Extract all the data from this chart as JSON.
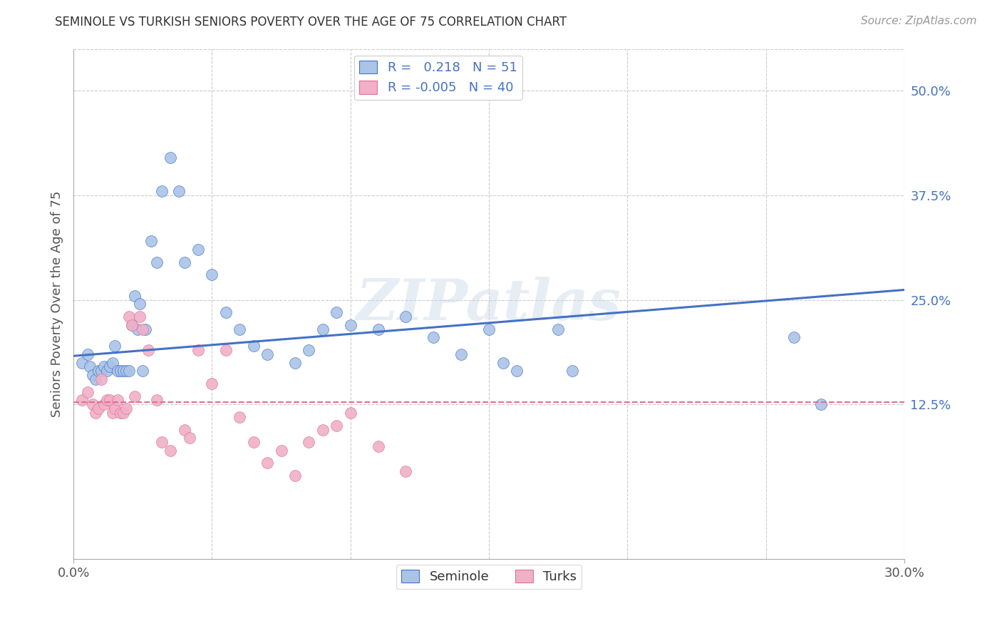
{
  "title": "SEMINOLE VS TURKISH SENIORS POVERTY OVER THE AGE OF 75 CORRELATION CHART",
  "source": "Source: ZipAtlas.com",
  "ylabel": "Seniors Poverty Over the Age of 75",
  "seminole_color": "#aac4e8",
  "turks_color": "#f0b0c8",
  "line_seminole_color": "#4472c4",
  "line_turks_color": "#e07090",
  "background_color": "#ffffff",
  "grid_color": "#cccccc",
  "legend_r_seminole": "0.218",
  "legend_n_seminole": "51",
  "legend_r_turks": "-0.005",
  "legend_n_turks": "40",
  "xlim": [
    0.0,
    0.3
  ],
  "ylim": [
    -0.06,
    0.55
  ],
  "ytick_positions": [
    0.125,
    0.25,
    0.375,
    0.5
  ],
  "ytick_labels": [
    "12.5%",
    "25.0%",
    "37.5%",
    "50.0%"
  ],
  "xtick_positions": [
    0.0,
    0.3
  ],
  "xtick_labels": [
    "0.0%",
    "30.0%"
  ],
  "sem_line_x0": 0.0,
  "sem_line_y0": 0.183,
  "sem_line_x1": 0.3,
  "sem_line_y1": 0.262,
  "turks_line_y": 0.128,
  "seminole_x": [
    0.003,
    0.005,
    0.006,
    0.007,
    0.008,
    0.009,
    0.01,
    0.011,
    0.012,
    0.013,
    0.014,
    0.015,
    0.016,
    0.017,
    0.018,
    0.019,
    0.02,
    0.021,
    0.022,
    0.023,
    0.024,
    0.025,
    0.026,
    0.028,
    0.03,
    0.032,
    0.035,
    0.038,
    0.04,
    0.045,
    0.05,
    0.055,
    0.06,
    0.065,
    0.07,
    0.08,
    0.085,
    0.09,
    0.095,
    0.1,
    0.11,
    0.12,
    0.13,
    0.14,
    0.15,
    0.155,
    0.16,
    0.175,
    0.18,
    0.26,
    0.27
  ],
  "seminole_y": [
    0.175,
    0.185,
    0.17,
    0.16,
    0.155,
    0.165,
    0.165,
    0.17,
    0.165,
    0.17,
    0.175,
    0.195,
    0.165,
    0.165,
    0.165,
    0.165,
    0.165,
    0.22,
    0.255,
    0.215,
    0.245,
    0.165,
    0.215,
    0.32,
    0.295,
    0.38,
    0.42,
    0.38,
    0.295,
    0.31,
    0.28,
    0.235,
    0.215,
    0.195,
    0.185,
    0.175,
    0.19,
    0.215,
    0.235,
    0.22,
    0.215,
    0.23,
    0.205,
    0.185,
    0.215,
    0.175,
    0.165,
    0.215,
    0.165,
    0.205,
    0.125
  ],
  "turks_x": [
    0.003,
    0.005,
    0.007,
    0.008,
    0.009,
    0.01,
    0.011,
    0.012,
    0.013,
    0.014,
    0.015,
    0.016,
    0.017,
    0.018,
    0.019,
    0.02,
    0.021,
    0.022,
    0.024,
    0.025,
    0.027,
    0.03,
    0.032,
    0.035,
    0.04,
    0.042,
    0.045,
    0.05,
    0.055,
    0.06,
    0.065,
    0.07,
    0.075,
    0.08,
    0.085,
    0.09,
    0.095,
    0.1,
    0.11,
    0.12
  ],
  "turks_y": [
    0.13,
    0.14,
    0.125,
    0.115,
    0.12,
    0.155,
    0.125,
    0.13,
    0.13,
    0.115,
    0.12,
    0.13,
    0.115,
    0.115,
    0.12,
    0.23,
    0.22,
    0.135,
    0.23,
    0.215,
    0.19,
    0.13,
    0.08,
    0.07,
    0.095,
    0.085,
    0.19,
    0.15,
    0.19,
    0.11,
    0.08,
    0.055,
    0.07,
    0.04,
    0.08,
    0.095,
    0.1,
    0.115,
    0.075,
    0.045
  ]
}
